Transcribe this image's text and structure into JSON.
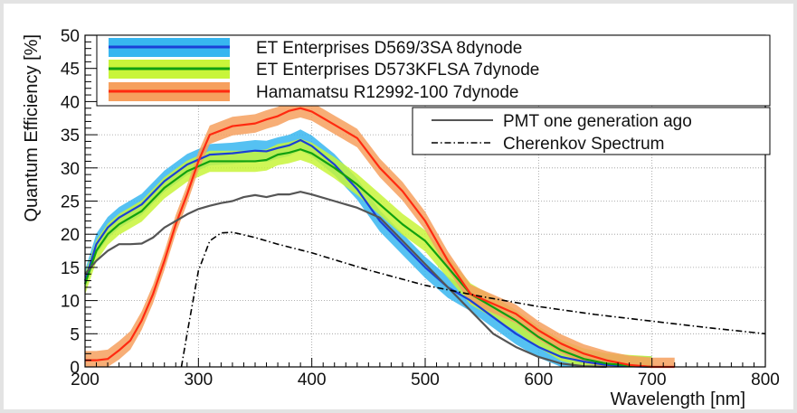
{
  "chart_data": {
    "type": "line",
    "xlabel": "Wavelength [nm]",
    "ylabel": "Quantum Efficiency [%]",
    "xlim": [
      200,
      800
    ],
    "ylim": [
      0,
      50
    ],
    "grid": true,
    "x_ticks": [
      "200",
      "300",
      "400",
      "500",
      "600",
      "700",
      "800"
    ],
    "y_ticks": [
      "0",
      "5",
      "10",
      "15",
      "20",
      "25",
      "30",
      "35",
      "40",
      "45",
      "50"
    ],
    "legend_top": [
      {
        "name": "ET Enterprises D569/3SA 8dynode",
        "line_color": "#1b3fd6",
        "band_color": "#37b6f0"
      },
      {
        "name": "ET Enterprises D573KFLSA 7dynode",
        "line_color": "#10a010",
        "band_color": "#c8f53a"
      },
      {
        "name": "Hamamatsu R12992-100 7dynode",
        "line_color": "#ff2a10",
        "band_color": "#f6a05e"
      }
    ],
    "legend_right": [
      {
        "name": "PMT one generation ago",
        "line_color": "#555555",
        "style": "solid"
      },
      {
        "name": "Cherenkov Spectrum",
        "line_color": "#000000",
        "style": "dashdot"
      }
    ],
    "series": [
      {
        "name": "ET Enterprises D569/3SA 8dynode",
        "color": "#1b3fd6",
        "band_color": "#37b6f0",
        "band_halfwidth": 1.6,
        "x": [
          200,
          210,
          220,
          230,
          250,
          270,
          290,
          310,
          330,
          350,
          360,
          370,
          380,
          390,
          400,
          420,
          440,
          460,
          480,
          500,
          520,
          540,
          560,
          580,
          600,
          620,
          640,
          660,
          680,
          700
        ],
        "y": [
          13,
          18.5,
          21,
          22.5,
          24.5,
          28,
          30.5,
          32,
          32.2,
          32.6,
          32.5,
          33,
          33.4,
          34.2,
          33.3,
          30.5,
          26.8,
          22,
          18.5,
          15,
          12,
          10,
          7.5,
          5,
          3,
          1.5,
          0.8,
          0.3,
          0.1,
          0
        ]
      },
      {
        "name": "ET Enterprises D573KFLSA 7dynode",
        "color": "#10a010",
        "band_color": "#c8f53a",
        "band_halfwidth": 1.6,
        "x": [
          200,
          210,
          220,
          230,
          250,
          270,
          290,
          310,
          330,
          350,
          360,
          370,
          380,
          390,
          400,
          420,
          440,
          460,
          480,
          500,
          520,
          540,
          560,
          580,
          600,
          620,
          640,
          660,
          680,
          700
        ],
        "y": [
          12.5,
          17.5,
          20,
          21.5,
          23.5,
          27,
          29.5,
          31,
          31,
          31,
          31.2,
          32,
          32.3,
          32.8,
          32.2,
          30,
          27.5,
          24.5,
          21.5,
          19,
          15,
          11,
          9,
          7,
          4.5,
          2.5,
          1.2,
          0.5,
          0.2,
          0
        ]
      },
      {
        "name": "Hamamatsu R12992-100 7dynode",
        "color": "#ff2a10",
        "band_color": "#f6a05e",
        "band_halfwidth": 1.4,
        "x": [
          200,
          210,
          220,
          230,
          240,
          250,
          260,
          270,
          280,
          290,
          300,
          310,
          330,
          350,
          360,
          370,
          380,
          390,
          400,
          420,
          440,
          460,
          480,
          500,
          520,
          540,
          560,
          580,
          600,
          620,
          640,
          660,
          680,
          700,
          720
        ],
        "y": [
          1,
          1,
          1.2,
          2.5,
          4,
          7,
          11,
          16,
          21.5,
          26,
          31,
          35,
          36.3,
          36.7,
          37.3,
          37.8,
          38.6,
          39,
          38.5,
          36.5,
          34.5,
          30,
          26.5,
          22,
          16,
          11,
          9.5,
          8,
          5.5,
          3.5,
          2,
          1,
          0.3,
          0,
          0
        ]
      },
      {
        "name": "PMT one generation ago",
        "color": "#555555",
        "x": [
          200,
          210,
          220,
          230,
          240,
          250,
          260,
          270,
          280,
          290,
          300,
          310,
          320,
          330,
          340,
          350,
          360,
          370,
          380,
          390,
          400,
          420,
          440,
          460,
          480,
          500,
          520,
          540,
          560,
          580,
          600,
          620,
          640,
          660
        ],
        "y": [
          14,
          16,
          17.5,
          18.5,
          18.5,
          18.6,
          19.5,
          21,
          22,
          23,
          23.8,
          24.3,
          24.7,
          25,
          25.6,
          25.9,
          25.6,
          26,
          26,
          26.4,
          26,
          25,
          24,
          22.5,
          19,
          15.5,
          12,
          8.5,
          5,
          3,
          1.5,
          0.5,
          0.1,
          0
        ]
      },
      {
        "name": "Cherenkov Spectrum",
        "color": "#000000",
        "dash": true,
        "x": [
          285,
          290,
          300,
          310,
          320,
          330,
          340,
          350,
          370,
          400,
          450,
          500,
          550,
          600,
          650,
          700,
          750,
          800
        ],
        "y": [
          0,
          5,
          14.5,
          19,
          20.2,
          20.3,
          19.9,
          19.5,
          18.5,
          17.2,
          14.6,
          12.3,
          10.6,
          9.1,
          7.9,
          6.9,
          5.9,
          5
        ]
      }
    ]
  }
}
